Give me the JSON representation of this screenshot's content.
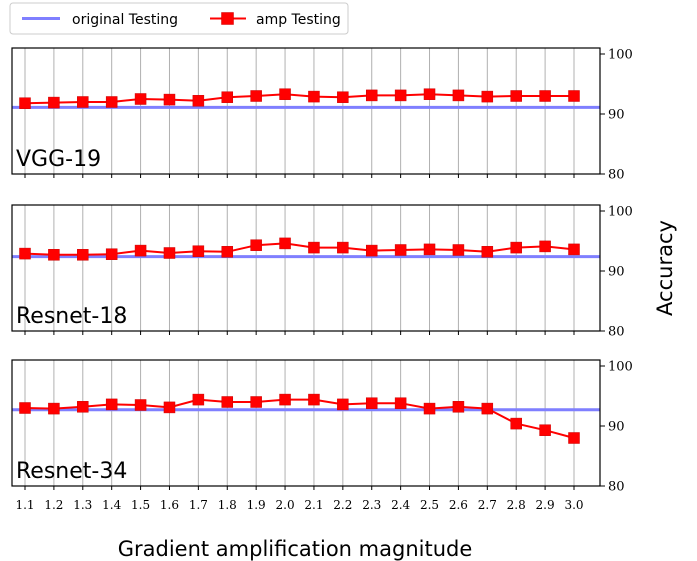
{
  "legend": {
    "original_label": "original Testing",
    "amp_label": "amp Testing"
  },
  "colors": {
    "original": "#7f7fff",
    "amp": "#ff0000",
    "grid": "#b0b0b0"
  },
  "xlabel": "Gradient amplification magnitude",
  "ylabel": "Accuracy",
  "chart_data": {
    "type": "line",
    "x": [
      1.1,
      1.2,
      1.3,
      1.4,
      1.5,
      1.6,
      1.7,
      1.8,
      1.9,
      2.0,
      2.1,
      2.2,
      2.3,
      2.4,
      2.5,
      2.6,
      2.7,
      2.8,
      2.9,
      3.0
    ],
    "x_tick_labels": [
      "1.1",
      "1.2",
      "1.3",
      "1.4",
      "1.5",
      "1.6",
      "1.7",
      "1.8",
      "1.9",
      "2.0",
      "2.1",
      "2.2",
      "2.3",
      "2.4",
      "2.5",
      "2.6",
      "2.7",
      "2.8",
      "2.9",
      "3.0"
    ],
    "ylim": [
      80,
      101
    ],
    "y_ticks": [
      80,
      90,
      100
    ],
    "grid": "vertical",
    "legend_position": "top-left",
    "panels": [
      {
        "label": "VGG-19",
        "original": 91.1,
        "amp": [
          91.8,
          91.9,
          92.0,
          92.0,
          92.5,
          92.4,
          92.2,
          92.8,
          93.0,
          93.3,
          92.9,
          92.8,
          93.1,
          93.1,
          93.3,
          93.1,
          92.9,
          93.0,
          93.0,
          93.0
        ]
      },
      {
        "label": "Resnet-18",
        "original": 92.4,
        "amp": [
          92.9,
          92.7,
          92.7,
          92.8,
          93.4,
          93.0,
          93.3,
          93.2,
          94.3,
          94.6,
          93.9,
          93.9,
          93.4,
          93.5,
          93.6,
          93.5,
          93.2,
          93.9,
          94.1,
          93.6
        ]
      },
      {
        "label": "Resnet-34",
        "original": 92.7,
        "amp": [
          93.0,
          92.9,
          93.2,
          93.6,
          93.5,
          93.1,
          94.4,
          94.0,
          94.0,
          94.4,
          94.4,
          93.6,
          93.8,
          93.8,
          92.9,
          93.2,
          92.9,
          90.4,
          89.3,
          88.0
        ]
      }
    ]
  }
}
